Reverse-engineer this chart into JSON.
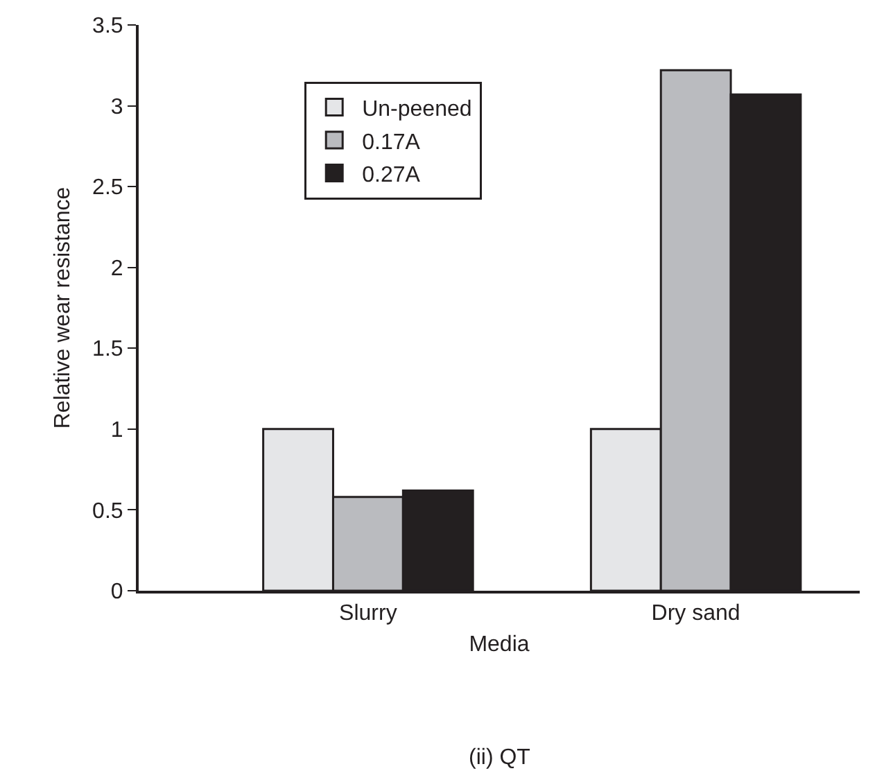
{
  "chart_data": {
    "type": "bar",
    "xlabel": "Media",
    "ylabel": "Relative wear resistance",
    "categories": [
      "Slurry",
      "Dry sand"
    ],
    "series": [
      {
        "name": "Un-peened",
        "color": "#e5e6e8",
        "values": [
          1.0,
          1.0
        ]
      },
      {
        "name": "0.17A",
        "color": "#babbbf",
        "values": [
          0.58,
          3.22
        ]
      },
      {
        "name": "0.27A",
        "color": "#231f20",
        "values": [
          0.62,
          3.07
        ]
      }
    ],
    "ylim": [
      0,
      3.5
    ],
    "yticks": [
      0,
      0.5,
      1,
      1.5,
      2,
      2.5,
      3,
      3.5
    ],
    "grid": false,
    "legend": "top left",
    "annotations": [
      "(ii) QT"
    ]
  }
}
